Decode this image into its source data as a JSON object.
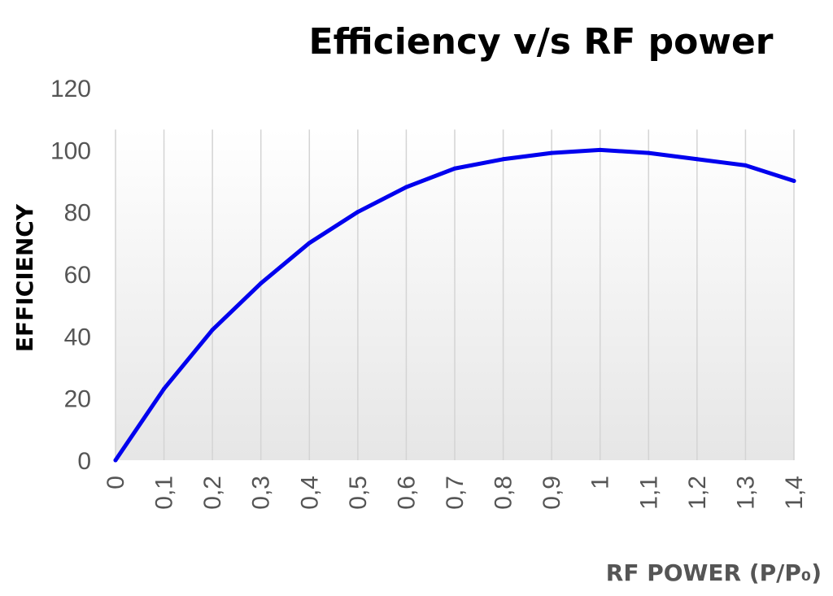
{
  "chart_data": {
    "type": "line",
    "title": "Efficiency v/s RF power",
    "xlabel": "RF POWER (P/P₀)",
    "ylabel": "EFFICIENCY",
    "categories": [
      "0",
      "0,1",
      "0,2",
      "0,3",
      "0,4",
      "0,5",
      "0,6",
      "0,7",
      "0,8",
      "0,9",
      "1",
      "1,1",
      "1,2",
      "1,3",
      "1,4"
    ],
    "x": [
      0,
      0.1,
      0.2,
      0.3,
      0.4,
      0.5,
      0.6,
      0.7,
      0.8,
      0.9,
      1.0,
      1.1,
      1.2,
      1.3,
      1.4
    ],
    "series": [
      {
        "values": [
          0,
          23,
          42,
          57,
          70,
          80,
          88,
          94,
          97,
          99,
          100,
          99,
          97,
          95,
          90
        ],
        "color": "#0000ee"
      }
    ],
    "yticks": [
      0,
      20,
      40,
      60,
      80,
      100,
      120
    ],
    "ylim": [
      0,
      120
    ],
    "grid": "vertical",
    "legend": "none",
    "plot_background": "gradient-white-to-lightgray"
  }
}
